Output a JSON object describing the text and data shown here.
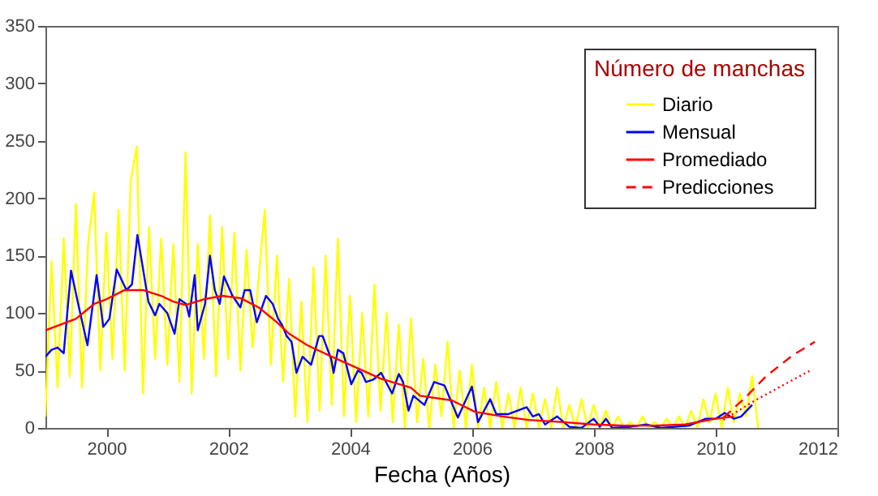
{
  "chart_data": {
    "type": "line",
    "xlabel": "Fecha (Años)",
    "legend_title": "Número de manchas",
    "legend": "top right",
    "xlim": [
      1999,
      2012
    ],
    "xticks": [
      2000,
      2002,
      2004,
      2006,
      2008,
      2010,
      2012
    ],
    "ylim": [
      0,
      350
    ],
    "yticks": [
      0,
      50,
      100,
      150,
      200,
      250,
      300,
      350
    ],
    "series": [
      {
        "name": "Diario",
        "color": "#ffff00",
        "line_style": "solid",
        "x": [
          1999.0,
          1999.1,
          1999.2,
          1999.3,
          1999.4,
          1999.5,
          1999.6,
          1999.7,
          1999.8,
          1999.9,
          2000.0,
          2000.1,
          2000.2,
          2000.3,
          2000.4,
          2000.5,
          2000.6,
          2000.7,
          2000.8,
          2000.9,
          2001.0,
          2001.1,
          2001.2,
          2001.3,
          2001.4,
          2001.5,
          2001.6,
          2001.7,
          2001.8,
          2001.9,
          2002.0,
          2002.1,
          2002.2,
          2002.3,
          2002.4,
          2002.5,
          2002.6,
          2002.7,
          2002.8,
          2002.9,
          2003.0,
          2003.1,
          2003.2,
          2003.3,
          2003.4,
          2003.5,
          2003.6,
          2003.7,
          2003.8,
          2003.9,
          2004.0,
          2004.1,
          2004.2,
          2004.3,
          2004.4,
          2004.5,
          2004.6,
          2004.7,
          2004.8,
          2004.9,
          2005.0,
          2005.1,
          2005.2,
          2005.3,
          2005.4,
          2005.5,
          2005.6,
          2005.7,
          2005.8,
          2005.9,
          2006.0,
          2006.1,
          2006.2,
          2006.3,
          2006.4,
          2006.5,
          2006.6,
          2006.7,
          2006.8,
          2006.9,
          2007.0,
          2007.1,
          2007.2,
          2007.3,
          2007.4,
          2007.5,
          2007.6,
          2007.7,
          2007.8,
          2007.9,
          2008.0,
          2008.1,
          2008.2,
          2008.3,
          2008.4,
          2008.5,
          2008.6,
          2008.7,
          2008.8,
          2008.9,
          2009.0,
          2009.1,
          2009.2,
          2009.3,
          2009.4,
          2009.5,
          2009.6,
          2009.7,
          2009.8,
          2009.9,
          2010.0,
          2010.1,
          2010.2,
          2010.3,
          2010.4,
          2010.5,
          2010.6,
          2010.7
        ],
        "values": [
          10,
          145,
          35,
          165,
          45,
          195,
          35,
          160,
          205,
          50,
          170,
          60,
          190,
          50,
          215,
          245,
          30,
          175,
          60,
          165,
          55,
          160,
          40,
          240,
          30,
          160,
          60,
          185,
          45,
          175,
          60,
          170,
          50,
          155,
          70,
          130,
          190,
          55,
          150,
          40,
          130,
          10,
          110,
          5,
          140,
          15,
          150,
          20,
          165,
          10,
          115,
          5,
          100,
          10,
          125,
          15,
          100,
          5,
          90,
          0,
          95,
          5,
          60,
          0,
          55,
          10,
          75,
          0,
          50,
          0,
          55,
          0,
          35,
          0,
          40,
          0,
          30,
          0,
          35,
          0,
          30,
          0,
          25,
          0,
          35,
          0,
          20,
          0,
          25,
          0,
          20,
          0,
          15,
          0,
          10,
          0,
          5,
          0,
          10,
          0,
          5,
          0,
          8,
          0,
          10,
          0,
          15,
          0,
          25,
          5,
          30,
          0,
          35,
          5,
          30,
          10,
          45,
          0
        ]
      },
      {
        "name": "Mensual",
        "color": "#0000ff",
        "line_style": "solid",
        "x": [
          1999.0,
          1999.1,
          1999.2,
          1999.3,
          1999.42,
          1999.55,
          1999.69,
          1999.84,
          1999.95,
          2000.05,
          2000.17,
          2000.33,
          2000.42,
          2000.51,
          2000.69,
          2000.8,
          2000.87,
          2001.0,
          2001.12,
          2001.2,
          2001.31,
          2001.36,
          2001.45,
          2001.5,
          2001.62,
          2001.7,
          2001.78,
          2001.86,
          2001.93,
          2002.07,
          2002.2,
          2002.27,
          2002.36,
          2002.47,
          2002.62,
          2002.73,
          2002.82,
          2002.88,
          2002.96,
          2003.04,
          2003.12,
          2003.22,
          2003.36,
          2003.49,
          2003.55,
          2003.69,
          2003.73,
          2003.8,
          2003.89,
          2004.02,
          2004.13,
          2004.19,
          2004.26,
          2004.38,
          2004.51,
          2004.69,
          2004.8,
          2004.87,
          2004.96,
          2005.04,
          2005.22,
          2005.38,
          2005.55,
          2005.77,
          2006.0,
          2006.1,
          2006.3,
          2006.4,
          2006.6,
          2006.9,
          2007.0,
          2007.1,
          2007.2,
          2007.4,
          2007.6,
          2007.8,
          2008.0,
          2008.1,
          2008.2,
          2008.3,
          2008.6,
          2008.86,
          2009.1,
          2009.57,
          2009.7,
          2009.84,
          2010.0,
          2010.15,
          2010.3,
          2010.42,
          2010.6
        ],
        "values": [
          62,
          68,
          70,
          65,
          137,
          105,
          72,
          133,
          88,
          95,
          138,
          120,
          125,
          168,
          110,
          98,
          108,
          100,
          82,
          112,
          108,
          97,
          133,
          85,
          108,
          150,
          120,
          108,
          132,
          115,
          105,
          120,
          120,
          92,
          115,
          108,
          95,
          90,
          80,
          75,
          48,
          62,
          55,
          80,
          80,
          60,
          48,
          68,
          65,
          38,
          50,
          48,
          40,
          42,
          48,
          30,
          47,
          40,
          15,
          28,
          20,
          40,
          37,
          9,
          36,
          5,
          25,
          12,
          12,
          18,
          10,
          12,
          3,
          10,
          1,
          0,
          8,
          1,
          8,
          0,
          1,
          3,
          0,
          2,
          5,
          8,
          8,
          13,
          8,
          10,
          20
        ]
      },
      {
        "name": "Promediado",
        "color": "#ff0000",
        "line_style": "solid",
        "x": [
          1999.0,
          1999.5,
          1999.8,
          2000.0,
          2000.3,
          2000.6,
          2000.9,
          2001.1,
          2001.3,
          2001.6,
          2001.9,
          2002.2,
          2002.5,
          2002.8,
          2003.0,
          2003.3,
          2003.7,
          2004.0,
          2004.5,
          2005.0,
          2005.15,
          2005.67,
          2006.05,
          2006.5,
          2006.93,
          2007.5,
          2008.0,
          2008.5,
          2009.0,
          2009.5,
          2009.8,
          2010.0,
          2010.3
        ],
        "values": [
          85,
          95,
          108,
          112,
          120,
          120,
          115,
          110,
          107,
          112,
          115,
          113,
          105,
          92,
          82,
          72,
          62,
          55,
          43,
          35,
          28,
          24,
          14,
          10,
          7,
          5,
          3,
          2,
          2,
          3,
          6,
          8,
          10
        ]
      },
      {
        "color": "#ff0000",
        "line_style": "dotted",
        "x": [
          2010.13,
          2010.65,
          2011.17,
          2011.59
        ],
        "values": [
          7,
          24,
          39,
          51
        ]
      },
      {
        "name": "Predicciones",
        "color": "#ff0000",
        "line_style": "dashed",
        "x": [
          2010.13,
          2010.48,
          2010.83,
          2011.26,
          2011.63
        ],
        "values": [
          9,
          26,
          45,
          63,
          75
        ]
      }
    ]
  }
}
